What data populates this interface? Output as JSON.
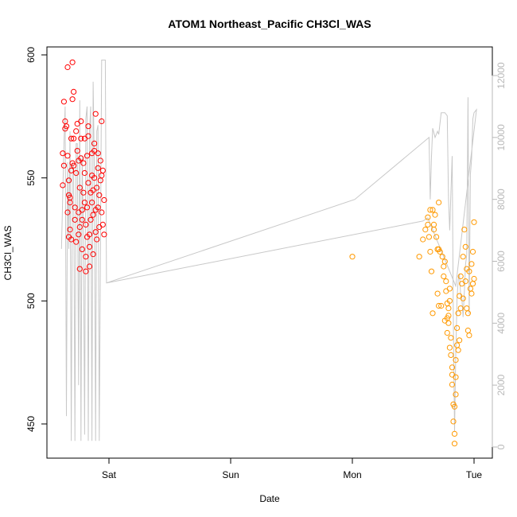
{
  "chart_data": {
    "type": "scatter",
    "title": "ATOM1 Northeast_Pacific CH3Cl_WAS",
    "xlabel": "Date",
    "ylabel": "CH3Cl_WAS",
    "x_unit": "day",
    "xlim": [
      -0.45,
      3.05
    ],
    "ylim": [
      438,
      602
    ],
    "y2lim": [
      -300,
      13400
    ],
    "x_ticks": [
      {
        "value": 0,
        "label": "Sat"
      },
      {
        "value": 1,
        "label": "Sun"
      },
      {
        "value": 2,
        "label": "Mon"
      },
      {
        "value": 3,
        "label": "Tue"
      }
    ],
    "y_ticks": [
      450,
      500,
      550,
      600
    ],
    "y2_ticks": [
      0,
      2000,
      4000,
      6000,
      8000,
      10000,
      12000
    ],
    "grid": false,
    "colors": {
      "series_red": "#ff0000",
      "series_orange": "#ff9900",
      "altitude_line": "#c8c8c8",
      "axis": "#000000",
      "right_axis": "#b8b8b8"
    },
    "series": [
      {
        "color": "red",
        "points": [
          [
            -0.38,
            547
          ],
          [
            -0.38,
            560
          ],
          [
            -0.37,
            555
          ],
          [
            -0.37,
            581
          ],
          [
            -0.36,
            573
          ],
          [
            -0.36,
            570
          ],
          [
            -0.35,
            571
          ],
          [
            -0.34,
            595
          ],
          [
            -0.34,
            559
          ],
          [
            -0.34,
            536
          ],
          [
            -0.33,
            526
          ],
          [
            -0.33,
            543
          ],
          [
            -0.33,
            549
          ],
          [
            -0.32,
            542
          ],
          [
            -0.32,
            540
          ],
          [
            -0.32,
            529
          ],
          [
            -0.31,
            525
          ],
          [
            -0.31,
            553
          ],
          [
            -0.31,
            566
          ],
          [
            -0.3,
            582
          ],
          [
            -0.3,
            597
          ],
          [
            -0.3,
            556
          ],
          [
            -0.29,
            585
          ],
          [
            -0.29,
            566
          ],
          [
            -0.29,
            555
          ],
          [
            -0.28,
            538
          ],
          [
            -0.28,
            533
          ],
          [
            -0.27,
            524
          ],
          [
            -0.27,
            552
          ],
          [
            -0.27,
            569
          ],
          [
            -0.26,
            561
          ],
          [
            -0.26,
            572
          ],
          [
            -0.25,
            557
          ],
          [
            -0.25,
            536
          ],
          [
            -0.25,
            527
          ],
          [
            -0.24,
            513
          ],
          [
            -0.24,
            530
          ],
          [
            -0.24,
            546
          ],
          [
            -0.23,
            566
          ],
          [
            -0.23,
            573
          ],
          [
            -0.23,
            558
          ],
          [
            -0.22,
            537
          ],
          [
            -0.22,
            521
          ],
          [
            -0.22,
            533
          ],
          [
            -0.21,
            544
          ],
          [
            -0.21,
            556
          ],
          [
            -0.2,
            566
          ],
          [
            -0.2,
            552
          ],
          [
            -0.2,
            540
          ],
          [
            -0.19,
            531
          ],
          [
            -0.19,
            512
          ],
          [
            -0.19,
            518
          ],
          [
            -0.18,
            526
          ],
          [
            -0.18,
            538
          ],
          [
            -0.18,
            559
          ],
          [
            -0.17,
            571
          ],
          [
            -0.17,
            567
          ],
          [
            -0.17,
            548
          ],
          [
            -0.16,
            527
          ],
          [
            -0.16,
            522
          ],
          [
            -0.16,
            514
          ],
          [
            -0.15,
            533
          ],
          [
            -0.15,
            544
          ],
          [
            -0.14,
            560
          ],
          [
            -0.14,
            551
          ],
          [
            -0.14,
            540
          ],
          [
            -0.13,
            535
          ],
          [
            -0.13,
            519
          ],
          [
            -0.13,
            545
          ],
          [
            -0.12,
            561
          ],
          [
            -0.12,
            564
          ],
          [
            -0.12,
            550
          ],
          [
            -0.11,
            576
          ],
          [
            -0.11,
            537
          ],
          [
            -0.11,
            528
          ],
          [
            -0.1,
            525
          ],
          [
            -0.1,
            546
          ],
          [
            -0.09,
            554
          ],
          [
            -0.09,
            560
          ],
          [
            -0.09,
            538
          ],
          [
            -0.08,
            530
          ],
          [
            -0.08,
            543
          ],
          [
            -0.07,
            549
          ],
          [
            -0.07,
            557
          ],
          [
            -0.06,
            573
          ],
          [
            -0.06,
            551
          ],
          [
            -0.06,
            536
          ],
          [
            -0.05,
            531
          ],
          [
            -0.05,
            553
          ],
          [
            -0.04,
            541
          ],
          [
            -0.04,
            527
          ]
        ]
      },
      {
        "color": "orange",
        "points": [
          [
            2.0,
            518
          ],
          [
            2.62,
            534
          ],
          [
            2.62,
            531
          ],
          [
            2.63,
            526
          ],
          [
            2.64,
            520
          ],
          [
            2.64,
            537
          ],
          [
            2.66,
            537
          ],
          [
            2.67,
            531
          ],
          [
            2.67,
            529
          ],
          [
            2.68,
            535
          ],
          [
            2.69,
            526
          ],
          [
            2.7,
            521
          ],
          [
            2.71,
            521
          ],
          [
            2.71,
            540
          ],
          [
            2.72,
            520
          ],
          [
            2.74,
            518
          ],
          [
            2.75,
            514
          ],
          [
            2.75,
            510
          ],
          [
            2.76,
            516
          ],
          [
            2.77,
            508
          ],
          [
            2.77,
            504
          ],
          [
            2.78,
            499
          ],
          [
            2.78,
            493
          ],
          [
            2.79,
            494
          ],
          [
            2.79,
            491
          ],
          [
            2.8,
            505
          ],
          [
            2.8,
            500
          ],
          [
            2.81,
            485
          ],
          [
            2.81,
            478
          ],
          [
            2.82,
            466
          ],
          [
            2.82,
            473
          ],
          [
            2.83,
            458
          ],
          [
            2.83,
            451
          ],
          [
            2.84,
            446
          ],
          [
            2.84,
            442
          ],
          [
            2.84,
            457
          ],
          [
            2.85,
            462
          ],
          [
            2.85,
            476
          ],
          [
            2.86,
            482
          ],
          [
            2.86,
            489
          ],
          [
            2.87,
            495
          ],
          [
            2.88,
            502
          ],
          [
            2.89,
            510
          ],
          [
            2.9,
            507
          ],
          [
            2.91,
            518
          ],
          [
            2.92,
            529
          ],
          [
            2.93,
            522
          ],
          [
            2.94,
            497
          ],
          [
            2.95,
            495
          ],
          [
            2.95,
            488
          ],
          [
            2.96,
            486
          ],
          [
            2.97,
            505
          ],
          [
            2.98,
            515
          ],
          [
            2.99,
            520
          ],
          [
            3.0,
            532
          ],
          [
            2.55,
            518
          ],
          [
            2.58,
            525
          ],
          [
            2.6,
            529
          ],
          [
            2.65,
            512
          ],
          [
            2.7,
            503
          ],
          [
            2.73,
            498
          ],
          [
            2.76,
            492
          ],
          [
            2.78,
            487
          ],
          [
            2.8,
            481
          ],
          [
            2.82,
            470
          ],
          [
            2.87,
            480
          ],
          [
            2.89,
            497
          ],
          [
            2.91,
            501
          ],
          [
            2.93,
            508
          ],
          [
            2.96,
            512
          ],
          [
            2.98,
            503
          ],
          [
            2.99,
            507
          ],
          [
            3.0,
            509
          ],
          [
            2.66,
            495
          ],
          [
            2.71,
            498
          ],
          [
            2.79,
            497
          ],
          [
            2.85,
            469
          ],
          [
            2.88,
            484
          ],
          [
            2.94,
            513
          ]
        ]
      }
    ],
    "altitude_line": {
      "color": "lightgray",
      "axis": "right",
      "points": [
        [
          -0.39,
          6400
        ],
        [
          -0.37,
          9800
        ],
        [
          -0.36,
          11000
        ],
        [
          -0.35,
          1000
        ],
        [
          -0.34,
          9200
        ],
        [
          -0.33,
          6400
        ],
        [
          -0.32,
          10200
        ],
        [
          -0.31,
          200
        ],
        [
          -0.3,
          9200
        ],
        [
          -0.29,
          9000
        ],
        [
          -0.28,
          200
        ],
        [
          -0.27,
          9800
        ],
        [
          -0.26,
          9800
        ],
        [
          -0.25,
          2000
        ],
        [
          -0.24,
          11200
        ],
        [
          -0.23,
          200
        ],
        [
          -0.22,
          9400
        ],
        [
          -0.21,
          6800
        ],
        [
          -0.2,
          400
        ],
        [
          -0.19,
          10600
        ],
        [
          -0.18,
          11000
        ],
        [
          -0.17,
          200
        ],
        [
          -0.16,
          10200
        ],
        [
          -0.15,
          11000
        ],
        [
          -0.14,
          200
        ],
        [
          -0.13,
          11800
        ],
        [
          -0.12,
          9000
        ],
        [
          -0.11,
          200
        ],
        [
          -0.1,
          10200
        ],
        [
          -0.09,
          10400
        ],
        [
          -0.08,
          200
        ],
        [
          -0.06,
          12500
        ],
        [
          -0.05,
          12500
        ],
        [
          -0.03,
          12500
        ],
        [
          -0.02,
          5300
        ],
        [
          2.02,
          8000
        ],
        [
          2.63,
          10000
        ],
        [
          2.64,
          8000
        ],
        [
          2.65,
          9400
        ],
        [
          2.66,
          10300
        ],
        [
          2.68,
          10000
        ],
        [
          2.7,
          10200
        ],
        [
          2.71,
          10100
        ],
        [
          2.73,
          10800
        ],
        [
          2.76,
          10800
        ],
        [
          2.78,
          10700
        ],
        [
          2.79,
          8000
        ],
        [
          2.8,
          7000
        ],
        [
          2.81,
          8200
        ],
        [
          2.82,
          9400
        ],
        [
          2.83,
          4000
        ],
        [
          2.84,
          500
        ],
        [
          2.85,
          3000
        ],
        [
          2.86,
          4800
        ],
        [
          2.87,
          5400
        ],
        [
          2.88,
          5600
        ],
        [
          2.89,
          4900
        ],
        [
          2.9,
          4800
        ],
        [
          2.91,
          4200
        ],
        [
          2.92,
          5000
        ],
        [
          2.93,
          5900
        ],
        [
          2.94,
          6200
        ],
        [
          2.95,
          11300
        ],
        [
          2.96,
          4300
        ],
        [
          2.97,
          8800
        ],
        [
          2.98,
          9300
        ],
        [
          2.99,
          10600
        ],
        [
          3.0,
          10800
        ],
        [
          3.02,
          10900
        ],
        [
          2.85,
          5200
        ],
        [
          2.62,
          7400
        ],
        [
          2.58,
          7300
        ],
        [
          -0.02,
          5300
        ]
      ]
    }
  }
}
